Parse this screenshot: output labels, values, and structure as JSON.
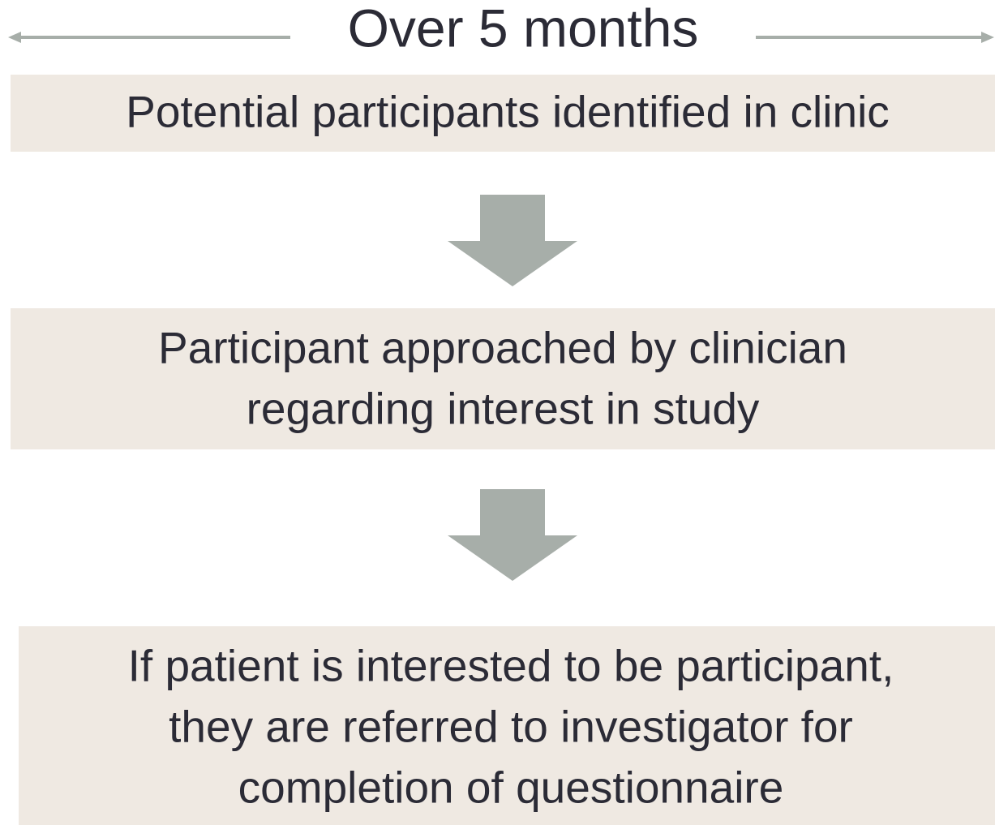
{
  "header": {
    "title": "Over 5 months"
  },
  "nodes": [
    {
      "lines": [
        "Potential participants identified in clinic"
      ]
    },
    {
      "lines": [
        "Participant approached by clinician",
        "regarding interest in study"
      ]
    },
    {
      "lines": [
        "If patient is interested to be participant,",
        "they are referred to investigator for",
        "completion of questionnaire"
      ]
    }
  ]
}
